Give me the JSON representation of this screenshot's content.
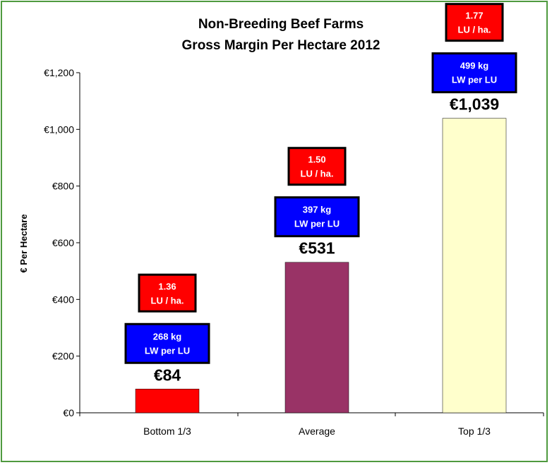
{
  "chart_data": {
    "type": "bar",
    "title": [
      "Non-Breeding Beef Farms",
      "Gross Margin Per Hectare 2012"
    ],
    "ylabel": "€ Per Hectare",
    "xlabel": "",
    "ylim": [
      0,
      1200
    ],
    "yticks": [
      0,
      200,
      400,
      600,
      800,
      1000,
      1200
    ],
    "ytick_labels": [
      "€0",
      "€200",
      "€400",
      "€600",
      "€800",
      "€1,000",
      "€1,200"
    ],
    "categories": [
      "Bottom 1/3",
      "Average",
      "Top 1/3"
    ],
    "values": [
      84,
      531,
      1039
    ],
    "value_labels": [
      "€84",
      "€531",
      "€1,039"
    ],
    "bar_colors": [
      "#ff0000",
      "#993366",
      "#ffffcc"
    ],
    "liveweight_boxes": [
      [
        "268 kg",
        "LW per LU"
      ],
      [
        "397 kg",
        "LW per LU"
      ],
      [
        "499 kg",
        "LW per LU"
      ]
    ],
    "stocking_boxes": [
      [
        "1.36",
        "LU / ha."
      ],
      [
        "1.50",
        "LU / ha."
      ],
      [
        "1.77",
        "LU / ha."
      ]
    ],
    "liveweight_box_color": "#0000ff",
    "stocking_box_color": "#ff0000",
    "grid": false,
    "legend": "none"
  }
}
